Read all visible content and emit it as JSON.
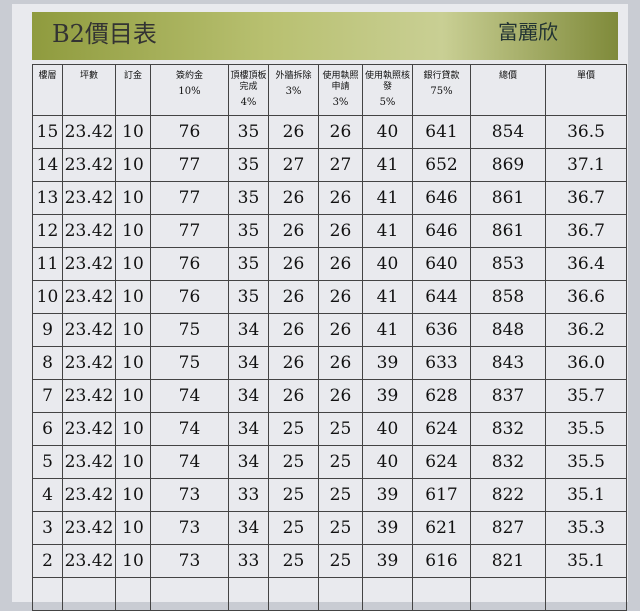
{
  "header": {
    "title": "B2價目表",
    "logo": "富麗欣"
  },
  "table": {
    "columns": [
      {
        "label": "樓層"
      },
      {
        "label": "坪數"
      },
      {
        "label": "訂金"
      },
      {
        "label": "簽約金",
        "percent": "10%"
      },
      {
        "label": "頂樓頂板完成",
        "percent": "4%"
      },
      {
        "label": "外牆拆除",
        "percent": "3%"
      },
      {
        "label": "使用執照申請",
        "percent": "3%"
      },
      {
        "label": "使用執照核發",
        "percent": "5%"
      },
      {
        "label": "銀行貸款",
        "percent": "75%"
      },
      {
        "label": "總價"
      },
      {
        "label": "單價"
      }
    ],
    "rows": [
      [
        "15",
        "23.42",
        "10",
        "76",
        "35",
        "26",
        "26",
        "40",
        "641",
        "854",
        "36.5"
      ],
      [
        "14",
        "23.42",
        "10",
        "77",
        "35",
        "27",
        "27",
        "41",
        "652",
        "869",
        "37.1"
      ],
      [
        "13",
        "23.42",
        "10",
        "77",
        "35",
        "26",
        "26",
        "41",
        "646",
        "861",
        "36.7"
      ],
      [
        "12",
        "23.42",
        "10",
        "77",
        "35",
        "26",
        "26",
        "41",
        "646",
        "861",
        "36.7"
      ],
      [
        "11",
        "23.42",
        "10",
        "76",
        "35",
        "26",
        "26",
        "40",
        "640",
        "853",
        "36.4"
      ],
      [
        "10",
        "23.42",
        "10",
        "76",
        "35",
        "26",
        "26",
        "41",
        "644",
        "858",
        "36.6"
      ],
      [
        "9",
        "23.42",
        "10",
        "75",
        "34",
        "26",
        "26",
        "41",
        "636",
        "848",
        "36.2"
      ],
      [
        "8",
        "23.42",
        "10",
        "75",
        "34",
        "26",
        "26",
        "39",
        "633",
        "843",
        "36.0"
      ],
      [
        "7",
        "23.42",
        "10",
        "74",
        "34",
        "26",
        "26",
        "39",
        "628",
        "837",
        "35.7"
      ],
      [
        "6",
        "23.42",
        "10",
        "74",
        "34",
        "25",
        "25",
        "40",
        "624",
        "832",
        "35.5"
      ],
      [
        "5",
        "23.42",
        "10",
        "74",
        "34",
        "25",
        "25",
        "40",
        "624",
        "832",
        "35.5"
      ],
      [
        "4",
        "23.42",
        "10",
        "73",
        "33",
        "25",
        "25",
        "39",
        "617",
        "822",
        "35.1"
      ],
      [
        "3",
        "23.42",
        "10",
        "73",
        "34",
        "25",
        "25",
        "39",
        "621",
        "827",
        "35.3"
      ],
      [
        "2",
        "23.42",
        "10",
        "73",
        "33",
        "25",
        "25",
        "39",
        "616",
        "821",
        "35.1"
      ]
    ]
  }
}
